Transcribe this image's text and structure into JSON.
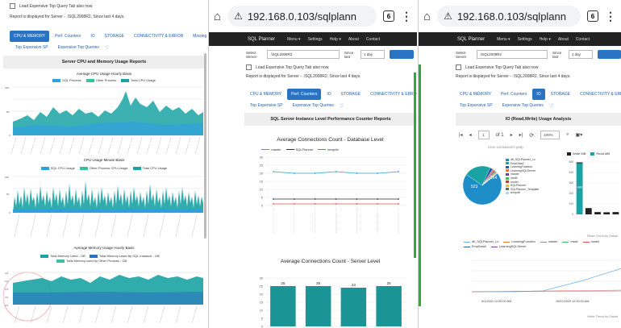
{
  "left": {
    "checkbox_label": "Load Expensive Top Query Tab also now",
    "report_info": "Report is displayed for Server - .\\SQL2008R2, Since last 4 days.",
    "tabs": [
      "CPU & MEMORY",
      "Perf. Counters",
      "IO",
      "STORAGE",
      "CONNECTIVITY & ERROR",
      "Missing Inde"
    ],
    "subtabs": [
      "Top Expensive SP",
      "Expensive Top Queries"
    ],
    "section_title": "Server CPU and Memory Usage Reports",
    "chart1_title": "Average CPU Usage Hourly Basis",
    "chart1_legend": [
      "SQL Process",
      "Other Process",
      "Total CPU Usage"
    ],
    "chart2_title": "CPU Usage Minute Basis",
    "chart2_legend": [
      "SQL CPU Usage",
      "Other Process CPU Usage",
      "Total CPU Usage"
    ],
    "chart3_title": "Average Memory Usage Hourly Basis",
    "chart3_legend": [
      "Total Memory Used - GB",
      "Total Memory Used By SQL Instance - GB",
      "Total Memory used by Other Process - GB"
    ]
  },
  "browser": {
    "url": "192.168.0.103/sqlplann",
    "tab_count": "6"
  },
  "nav": {
    "brand": "SQL Planner",
    "items": [
      "Menu",
      "Settings",
      "Help",
      "About",
      "Contact"
    ]
  },
  "form": {
    "select_label": "Select Server",
    "server_value": ".\\SQL2008R2",
    "since_label": "Since last",
    "since_value": "1 day"
  },
  "middle": {
    "checkbox_label": "Load Expensive Top Query Tab also now",
    "report_info": "Report is displayed for Server - .\\SQL2008R2, Since last 4 days.",
    "tabs": [
      "CPU & MEMORY",
      "Perf. Counters",
      "IO",
      "STORAGE",
      "CONNECTIVITY & ERROR"
    ],
    "subtabs": [
      "Top Expensive SP",
      "Expensive Top Queries"
    ],
    "section_title": "SQL Server Instance Level Performance Counter Reports",
    "chart1_title": "Average Connections Count - Database Level",
    "chart1_legend": [
      "master",
      "SQLPlanner",
      "tempdb"
    ],
    "chart2_title": "Average Connections Count - Server Level"
  },
  "right": {
    "checkbox_label": "Load Expensive Top Query Tab also now",
    "report_info": "Report is displayed for Server - .\\SQL2008R2, Since last 4 days.",
    "tabs": [
      "CPU & MEMORY",
      "Perf. Counters",
      "IO",
      "STORAGE",
      "CONNECTIVITY & ERROR"
    ],
    "subtabs": [
      "Top Expensive SP",
      "Expensive Top Queries"
    ],
    "section_title": "IO (Read,Write) Usage Analysis",
    "page_value": "1",
    "page_of": "of 1",
    "zoom": "100%",
    "pie_title": "DISK DATABASES (MB)",
    "pie_legend": [
      "db_SQLPlanner_Lo",
      "EmpData2",
      "LearningFunction",
      "LearningSQLServer",
      "master",
      "msdb",
      "model",
      "SQLPlanner",
      "SQLPlanner_Template",
      "tempdb"
    ],
    "bar_legend": [
      "Write MB",
      "Read MB"
    ],
    "trend_title": "Read Trend by Datab",
    "trend_legend": [
      "db_SQLPlanner_Lo",
      "LearningFunction",
      "master",
      "msdb",
      "model",
      "EmpData2",
      "LearningSQLServer"
    ],
    "trend_x": [
      "6/1/2020 12:00:00 AM",
      "10/22/2020 12:00:00 AM"
    ],
    "write_title": "Write Trend by Datab"
  },
  "chart_data": [
    {
      "type": "line",
      "title": "Average Connections Count - Database Level",
      "series": [
        {
          "name": "master",
          "values": [
            21,
            20,
            20,
            21,
            20,
            20,
            21
          ]
        },
        {
          "name": "SQLPlanner",
          "values": [
            4,
            4,
            4,
            4,
            4,
            4,
            4
          ]
        },
        {
          "name": "tempdb",
          "values": [
            1,
            1,
            1,
            1,
            1,
            1,
            1
          ]
        }
      ],
      "ylim": [
        0,
        30
      ],
      "yticks": [
        0,
        5,
        10,
        15,
        20,
        25,
        30
      ]
    },
    {
      "type": "bar",
      "title": "Average Connections Count - Server Level",
      "values": [
        25,
        25,
        24,
        25
      ],
      "ylim": [
        0,
        30
      ],
      "yticks": [
        0,
        5,
        10,
        15,
        20,
        25,
        30
      ]
    },
    {
      "type": "pie",
      "title": "DISK DATABASES (MB)",
      "values": [
        523,
        164,
        20,
        10,
        8,
        6,
        5,
        4,
        3,
        2
      ],
      "labels_shown": [
        "523",
        "164"
      ]
    },
    {
      "type": "bar",
      "series": [
        {
          "name": "Write MB",
          "values": [
            8,
            30,
            2,
            2,
            2
          ]
        },
        {
          "name": "Read MB",
          "values": [
            488,
            30,
            20,
            18,
            20
          ]
        }
      ],
      "label_shown": "488",
      "yticks": [
        0,
        100,
        200,
        300,
        400,
        500
      ],
      "ylim": [
        0,
        500
      ]
    }
  ],
  "colors": {
    "teal": "#1aa3a3",
    "tab_blue": "#2a73c2",
    "nav_dark": "#222222"
  }
}
